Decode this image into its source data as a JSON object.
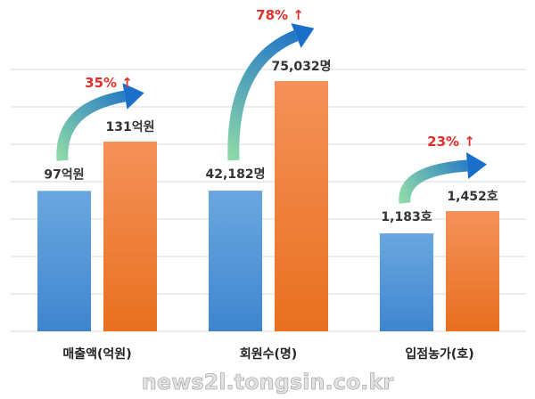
{
  "chart_data": {
    "type": "bar",
    "groups": [
      {
        "category": "매출액(억원)",
        "before_value": 97,
        "after_value": 131,
        "before_label": "97억원",
        "after_label": "131억원",
        "growth_label": "35% ↑"
      },
      {
        "category": "회원수(명)",
        "before_value": 42182,
        "after_value": 75032,
        "before_label": "42,182명",
        "after_label": "75,032명",
        "growth_label": "78% ↑"
      },
      {
        "category": "입점농가(호)",
        "before_value": 1183,
        "after_value": 1452,
        "before_label": "1,183호",
        "after_label": "1,452호",
        "growth_label": "23% ↑"
      }
    ],
    "grid": true,
    "legend": false
  },
  "colors": {
    "before_bar": "#5b9ad8",
    "after_bar": "#ef7d33",
    "growth_text": "#e0302c",
    "value_text": "#333333",
    "grid": "#d9d9d9",
    "arrow_start": "#8ed9a8",
    "arrow_end": "#1a6fc9"
  },
  "watermark": "news2l.tongsin.co.kr"
}
